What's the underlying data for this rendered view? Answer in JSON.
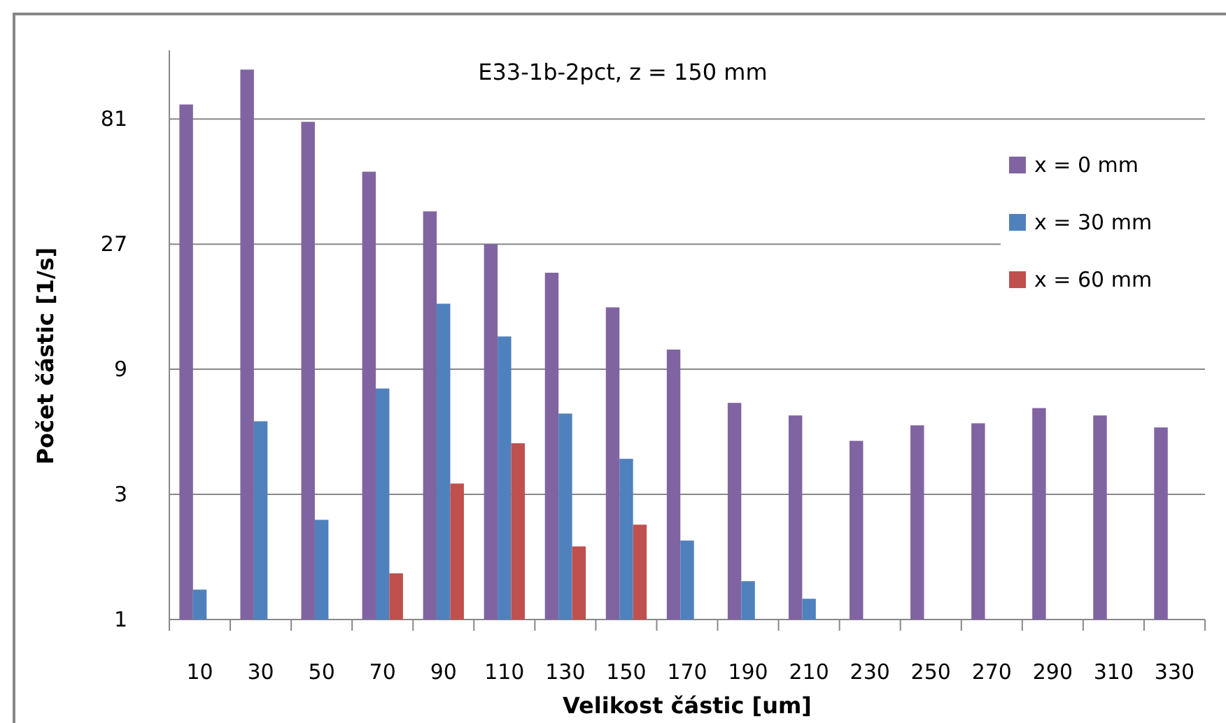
{
  "chart_data": {
    "type": "bar",
    "title": "E33-1b-2pct, z = 150 mm",
    "xlabel": "Velikost částic [um]",
    "ylabel": "Počet částic [1/s]",
    "categories": [
      "10",
      "30",
      "50",
      "70",
      "90",
      "110",
      "130",
      "150",
      "170",
      "190",
      "210",
      "230",
      "250",
      "270",
      "290",
      "310",
      "330"
    ],
    "series": [
      {
        "name": "x = 0 mm",
        "color": "#8064a2",
        "values": [
          92,
          125,
          79,
          51,
          36,
          27,
          21,
          15.5,
          10.7,
          6.7,
          6.0,
          4.8,
          5.5,
          5.6,
          6.4,
          6.0,
          5.4
        ]
      },
      {
        "name": "x = 30 mm",
        "color": "#4f81bd",
        "values": [
          1.3,
          5.7,
          2.4,
          7.6,
          16,
          12,
          6.1,
          4.1,
          2.0,
          1.4,
          1.2,
          null,
          null,
          null,
          null,
          null,
          null
        ]
      },
      {
        "name": "x = 60 mm",
        "color": "#c0504d",
        "values": [
          null,
          null,
          null,
          1.5,
          3.3,
          4.7,
          1.9,
          2.3,
          null,
          null,
          null,
          null,
          null,
          null,
          null,
          null,
          null
        ]
      }
    ],
    "log": "y",
    "ylim": [
      1,
      148
    ],
    "yticks": [
      1,
      3,
      9,
      27,
      81
    ],
    "grid": "y",
    "legend": "right"
  }
}
